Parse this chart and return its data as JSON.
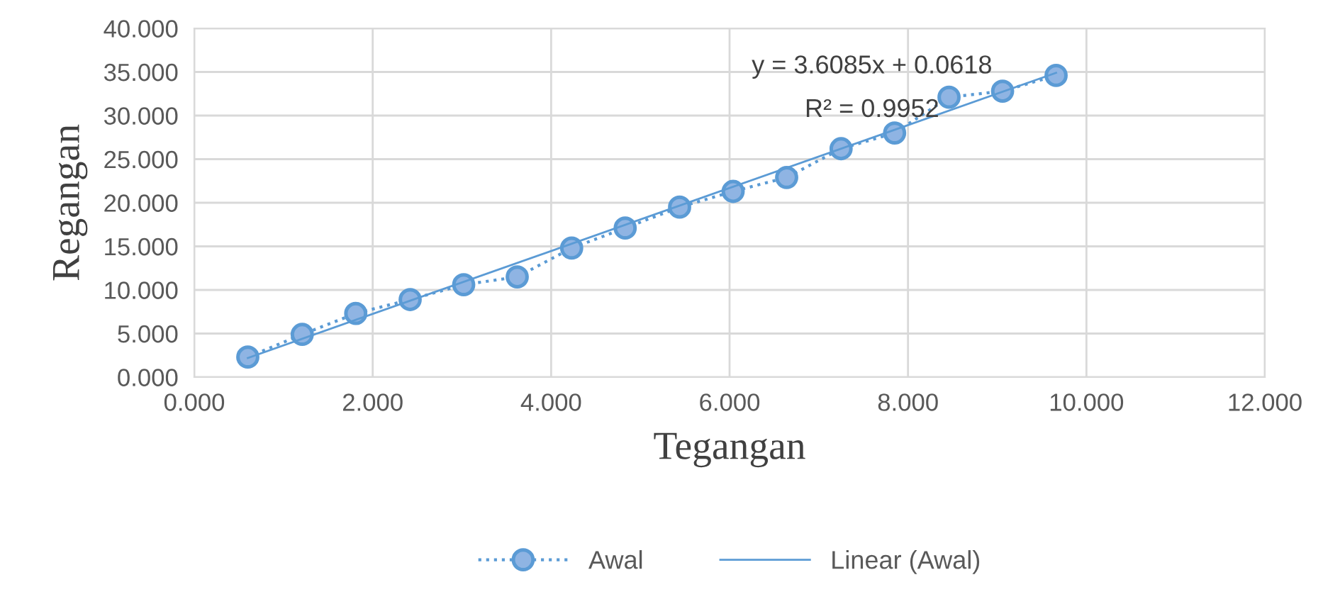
{
  "chart_data": {
    "type": "line",
    "xlabel": "Tegangan",
    "ylabel": "Regangan",
    "xlim": [
      0,
      12
    ],
    "ylim": [
      0,
      40
    ],
    "xticks": [
      {
        "value": 0,
        "label": "0.000"
      },
      {
        "value": 2,
        "label": "2.000"
      },
      {
        "value": 4,
        "label": "4.000"
      },
      {
        "value": 6,
        "label": "6.000"
      },
      {
        "value": 8,
        "label": "8.000"
      },
      {
        "value": 10,
        "label": "10.000"
      },
      {
        "value": 12,
        "label": "12.000"
      }
    ],
    "yticks": [
      {
        "value": 0,
        "label": "0.000"
      },
      {
        "value": 5,
        "label": "5.000"
      },
      {
        "value": 10,
        "label": "10.000"
      },
      {
        "value": 15,
        "label": "15.000"
      },
      {
        "value": 20,
        "label": "20.000"
      },
      {
        "value": 25,
        "label": "25.000"
      },
      {
        "value": 30,
        "label": "30.000"
      },
      {
        "value": 35,
        "label": "35.000"
      },
      {
        "value": 40,
        "label": "40.000"
      }
    ],
    "grid": true,
    "legend": "bottom",
    "series": [
      {
        "name": "Awal",
        "marker": "circle",
        "line_style": "dotted",
        "color": "#5b9bd5",
        "x": [
          0.6,
          1.21,
          1.81,
          2.42,
          3.02,
          3.62,
          4.23,
          4.83,
          5.44,
          6.04,
          6.64,
          7.25,
          7.85,
          8.46,
          9.06,
          9.66
        ],
        "values": [
          2.3,
          4.9,
          7.3,
          8.9,
          10.6,
          11.5,
          14.8,
          17.1,
          19.5,
          21.3,
          22.9,
          26.2,
          28.0,
          32.1,
          32.8,
          34.6
        ]
      },
      {
        "name": "Linear (Awal)",
        "marker": "none",
        "line_style": "solid",
        "color": "#5b9bd5",
        "x": [
          0.6,
          9.66
        ],
        "values": [
          2.2,
          34.9
        ]
      }
    ],
    "annotations": [
      "y = 3.6085x + 0.0618",
      "R² = 0.9952"
    ]
  }
}
